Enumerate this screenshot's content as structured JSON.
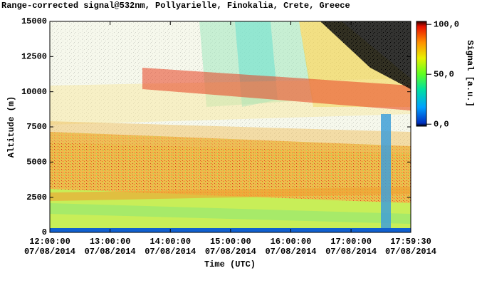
{
  "chart_data": {
    "type": "heatmap",
    "title": "Range-corrected signal@532nm, Pollyarielle, Finokalia, Crete, Greece",
    "x_label": "Time (UTC)",
    "y_label": "Altitude (m)",
    "xlim": [
      12,
      17.991667
    ],
    "xticks": [
      {
        "value": 12,
        "label": "12:00:00",
        "date": "07/08/2014"
      },
      {
        "value": 13,
        "label": "13:00:00",
        "date": "07/08/2014"
      },
      {
        "value": 14,
        "label": "14:00:00",
        "date": "07/08/2014"
      },
      {
        "value": 15,
        "label": "15:00:00",
        "date": "07/08/2014"
      },
      {
        "value": 16,
        "label": "16:00:00",
        "date": "07/08/2014"
      },
      {
        "value": 17,
        "label": "17:00:00",
        "date": "07/08/2014"
      },
      {
        "value": 17.991667,
        "label": "17:59:30",
        "date": "07/08/2014"
      }
    ],
    "ylim": [
      0,
      15000
    ],
    "yticks": [
      0,
      2500,
      5000,
      7500,
      10000,
      12500,
      15000
    ],
    "colorbar": {
      "label": "Signal [a.u.]",
      "lim": [
        -2,
        103
      ],
      "ticks": [
        {
          "value": 0,
          "label": "0,0"
        },
        {
          "value": 50,
          "label": "50,0"
        },
        {
          "value": 100,
          "label": "100,0"
        }
      ]
    }
  }
}
